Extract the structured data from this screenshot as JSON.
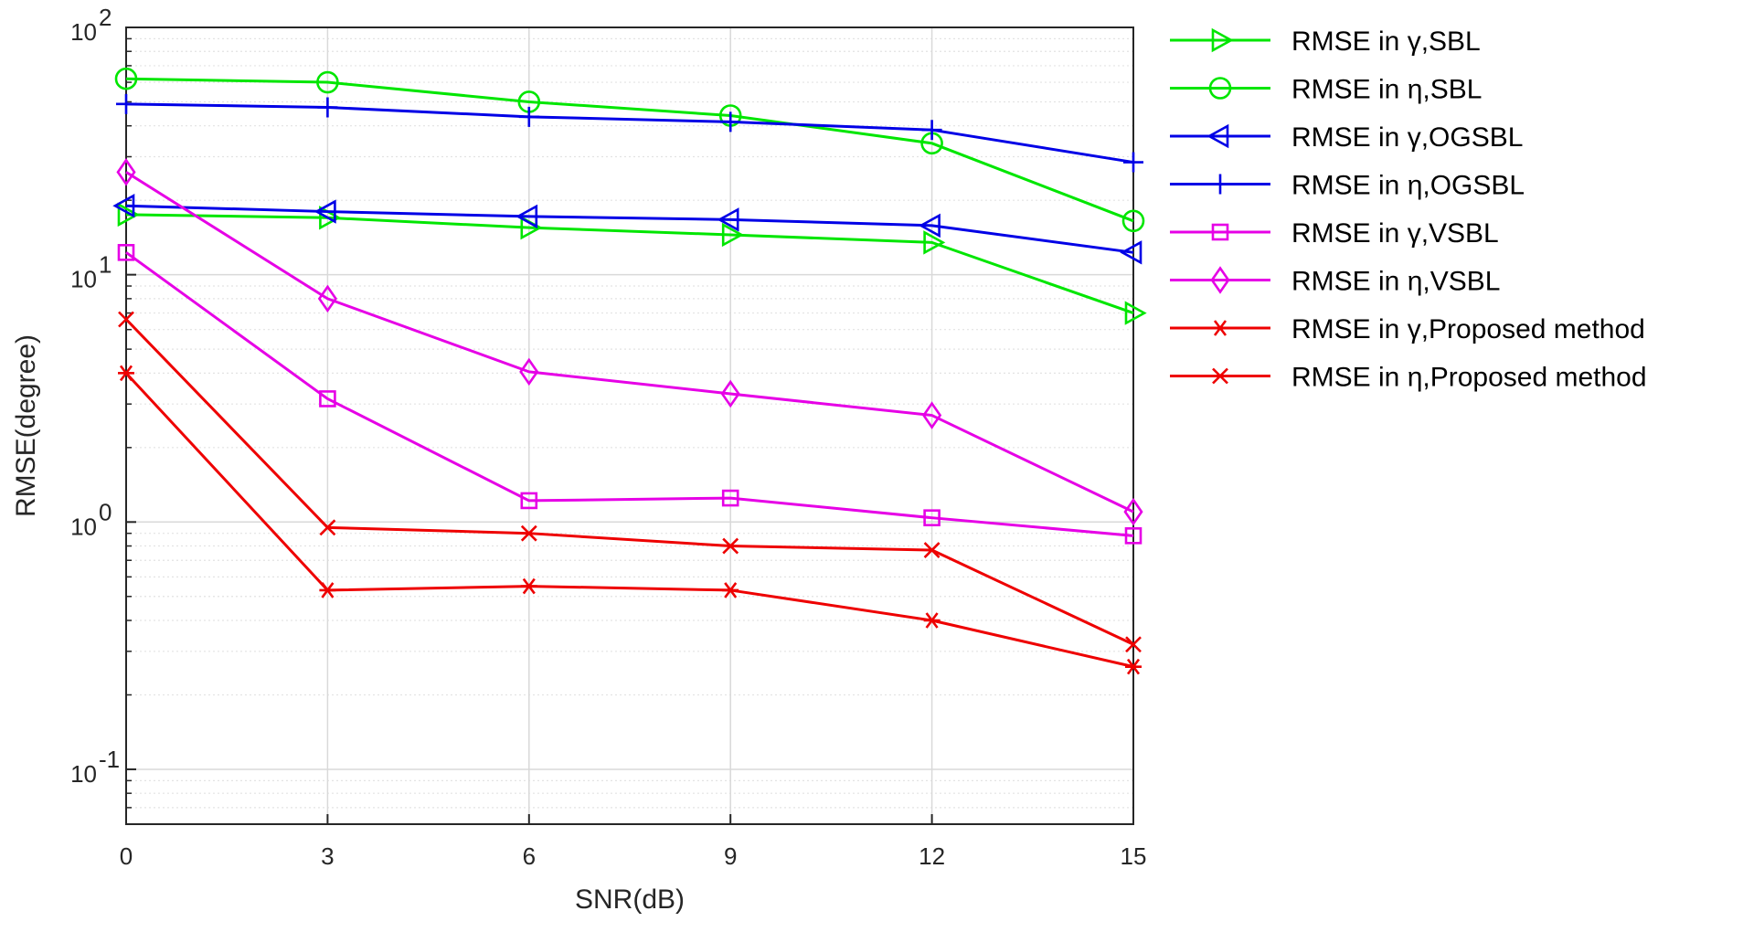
{
  "chart_data": {
    "type": "line",
    "title": "",
    "xlabel": "SNR(dB)",
    "ylabel": "RMSE(degree)",
    "yscale": "log",
    "x": [
      0,
      3,
      6,
      9,
      12,
      15
    ],
    "xlim": [
      0,
      15
    ],
    "ylim": [
      0.06,
      100
    ],
    "xticks": [
      "0",
      "3",
      "6",
      "9",
      "12",
      "15"
    ],
    "yticks": [
      {
        "value": 0.1,
        "base": "10",
        "exp": "-1"
      },
      {
        "value": 1,
        "base": "10",
        "exp": "0"
      },
      {
        "value": 10,
        "base": "10",
        "exp": "1"
      },
      {
        "value": 100,
        "base": "10",
        "exp": "2"
      }
    ],
    "grid": true,
    "legend_position": "outside-right",
    "series": [
      {
        "name": "RMSE in γ,SBL",
        "color": "#00e600",
        "marker": "triangle-right",
        "values": [
          17.5,
          17.0,
          15.5,
          14.5,
          13.5,
          7.0
        ]
      },
      {
        "name": "RMSE in η,SBL",
        "color": "#00e600",
        "marker": "circle",
        "values": [
          62,
          60,
          50,
          44,
          34,
          16.5
        ]
      },
      {
        "name": "RMSE in γ,OGSBL",
        "color": "#0000e6",
        "marker": "triangle-left",
        "values": [
          19.0,
          18.0,
          17.2,
          16.7,
          15.8,
          12.3
        ]
      },
      {
        "name": "RMSE in η,OGSBL",
        "color": "#0000e6",
        "marker": "plus",
        "values": [
          49,
          47.5,
          43.5,
          41.5,
          38.5,
          28.5
        ]
      },
      {
        "name": "RMSE in γ,VSBL",
        "color": "#e600e6",
        "marker": "square",
        "values": [
          12.3,
          3.15,
          1.22,
          1.25,
          1.04,
          0.88
        ]
      },
      {
        "name": "RMSE in η,VSBL",
        "color": "#e600e6",
        "marker": "diamond",
        "values": [
          26.0,
          8.0,
          4.05,
          3.3,
          2.7,
          1.1
        ]
      },
      {
        "name": "RMSE in γ,Proposed method",
        "color": "#ee0000",
        "marker": "asterisk",
        "values": [
          4.0,
          0.53,
          0.55,
          0.53,
          0.4,
          0.26
        ]
      },
      {
        "name": "RMSE in η,Proposed method",
        "color": "#ee0000",
        "marker": "x",
        "values": [
          6.6,
          0.95,
          0.9,
          0.8,
          0.77,
          0.32
        ]
      }
    ]
  }
}
